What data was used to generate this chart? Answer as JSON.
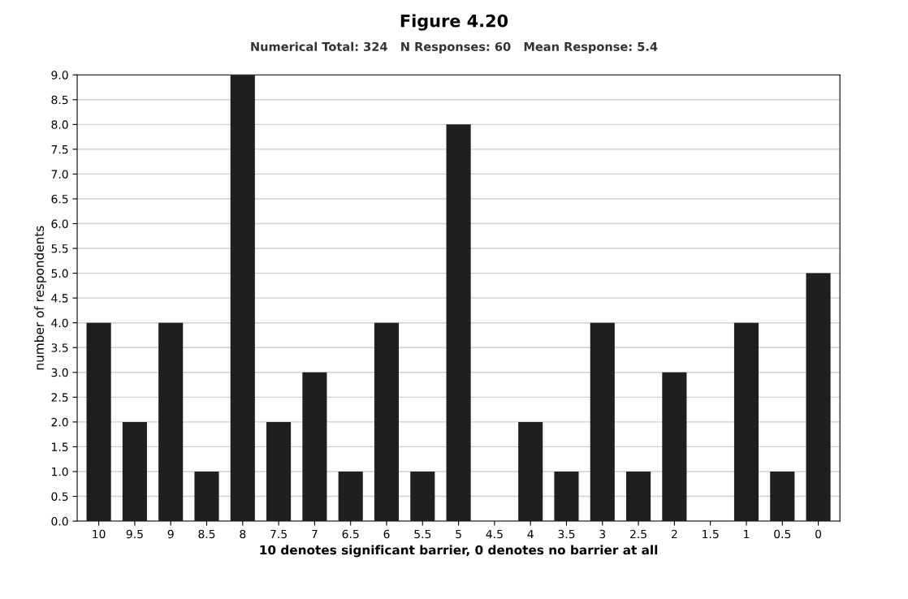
{
  "chart_data": {
    "type": "bar",
    "title": "Figure 4.20",
    "subtitle": "Numerical Total: 324   N Responses: 60   Mean Response: 5.4",
    "xlabel": "10 denotes significant barrier, 0 denotes no barrier at all",
    "ylabel": "number of respondents",
    "categories": [
      "10",
      "9.5",
      "9",
      "8.5",
      "8",
      "7.5",
      "7",
      "6.5",
      "6",
      "5.5",
      "5",
      "4.5",
      "4",
      "3.5",
      "3",
      "2.5",
      "2",
      "1.5",
      "1",
      "0.5",
      "0"
    ],
    "values": [
      4,
      2,
      4,
      1,
      9,
      2,
      3,
      1,
      4,
      1,
      8,
      0,
      2,
      1,
      4,
      1,
      3,
      0,
      4,
      1,
      5
    ],
    "color": "#1f1f1f",
    "ylim": [
      0,
      9
    ],
    "yticks": [
      {
        "value": 0,
        "label": "0.0"
      },
      {
        "value": 0.5,
        "label": "0.5"
      },
      {
        "value": 1,
        "label": "1.0"
      },
      {
        "value": 1.5,
        "label": "1.5"
      },
      {
        "value": 2,
        "label": "2.0"
      },
      {
        "value": 2.5,
        "label": "2.5"
      },
      {
        "value": 3,
        "label": "3.0"
      },
      {
        "value": 3.5,
        "label": "3.5"
      },
      {
        "value": 4,
        "label": "4.0"
      },
      {
        "value": 4.5,
        "label": "4.5"
      },
      {
        "value": 5,
        "label": "5.0"
      },
      {
        "value": 5.5,
        "label": "5.5"
      },
      {
        "value": 6,
        "label": "6.0"
      },
      {
        "value": 6.5,
        "label": "6.5"
      },
      {
        "value": 7,
        "label": "7.0"
      },
      {
        "value": 7.5,
        "label": "7.5"
      },
      {
        "value": 8,
        "label": "8.0"
      },
      {
        "value": 8.5,
        "label": "8.5"
      },
      {
        "value": 9,
        "label": "9.0"
      }
    ],
    "grid": "y"
  }
}
